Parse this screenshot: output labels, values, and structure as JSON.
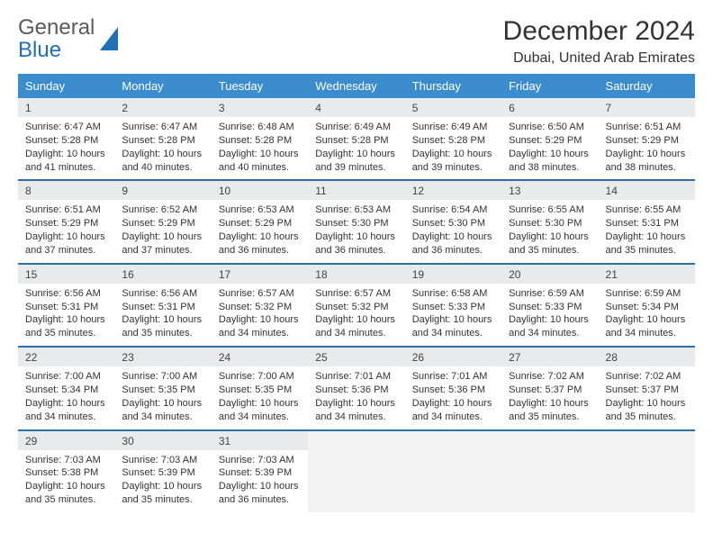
{
  "logo": {
    "line1": "General",
    "line2": "Blue"
  },
  "header": {
    "month_title": "December 2024",
    "location": "Dubai, United Arab Emirates"
  },
  "colors": {
    "header_bg": "#3b8ccc",
    "row_divider": "#2f6fa8",
    "daynum_bg": "#e9eaeb",
    "logo_gray": "#5b5b5b",
    "logo_blue": "#1f70b8"
  },
  "weekdays": [
    "Sunday",
    "Monday",
    "Tuesday",
    "Wednesday",
    "Thursday",
    "Friday",
    "Saturday"
  ],
  "weeks": [
    [
      {
        "n": "1",
        "sunrise": "6:47 AM",
        "sunset": "5:28 PM",
        "daylight": "10 hours and 41 minutes."
      },
      {
        "n": "2",
        "sunrise": "6:47 AM",
        "sunset": "5:28 PM",
        "daylight": "10 hours and 40 minutes."
      },
      {
        "n": "3",
        "sunrise": "6:48 AM",
        "sunset": "5:28 PM",
        "daylight": "10 hours and 40 minutes."
      },
      {
        "n": "4",
        "sunrise": "6:49 AM",
        "sunset": "5:28 PM",
        "daylight": "10 hours and 39 minutes."
      },
      {
        "n": "5",
        "sunrise": "6:49 AM",
        "sunset": "5:28 PM",
        "daylight": "10 hours and 39 minutes."
      },
      {
        "n": "6",
        "sunrise": "6:50 AM",
        "sunset": "5:29 PM",
        "daylight": "10 hours and 38 minutes."
      },
      {
        "n": "7",
        "sunrise": "6:51 AM",
        "sunset": "5:29 PM",
        "daylight": "10 hours and 38 minutes."
      }
    ],
    [
      {
        "n": "8",
        "sunrise": "6:51 AM",
        "sunset": "5:29 PM",
        "daylight": "10 hours and 37 minutes."
      },
      {
        "n": "9",
        "sunrise": "6:52 AM",
        "sunset": "5:29 PM",
        "daylight": "10 hours and 37 minutes."
      },
      {
        "n": "10",
        "sunrise": "6:53 AM",
        "sunset": "5:29 PM",
        "daylight": "10 hours and 36 minutes."
      },
      {
        "n": "11",
        "sunrise": "6:53 AM",
        "sunset": "5:30 PM",
        "daylight": "10 hours and 36 minutes."
      },
      {
        "n": "12",
        "sunrise": "6:54 AM",
        "sunset": "5:30 PM",
        "daylight": "10 hours and 36 minutes."
      },
      {
        "n": "13",
        "sunrise": "6:55 AM",
        "sunset": "5:30 PM",
        "daylight": "10 hours and 35 minutes."
      },
      {
        "n": "14",
        "sunrise": "6:55 AM",
        "sunset": "5:31 PM",
        "daylight": "10 hours and 35 minutes."
      }
    ],
    [
      {
        "n": "15",
        "sunrise": "6:56 AM",
        "sunset": "5:31 PM",
        "daylight": "10 hours and 35 minutes."
      },
      {
        "n": "16",
        "sunrise": "6:56 AM",
        "sunset": "5:31 PM",
        "daylight": "10 hours and 35 minutes."
      },
      {
        "n": "17",
        "sunrise": "6:57 AM",
        "sunset": "5:32 PM",
        "daylight": "10 hours and 34 minutes."
      },
      {
        "n": "18",
        "sunrise": "6:57 AM",
        "sunset": "5:32 PM",
        "daylight": "10 hours and 34 minutes."
      },
      {
        "n": "19",
        "sunrise": "6:58 AM",
        "sunset": "5:33 PM",
        "daylight": "10 hours and 34 minutes."
      },
      {
        "n": "20",
        "sunrise": "6:59 AM",
        "sunset": "5:33 PM",
        "daylight": "10 hours and 34 minutes."
      },
      {
        "n": "21",
        "sunrise": "6:59 AM",
        "sunset": "5:34 PM",
        "daylight": "10 hours and 34 minutes."
      }
    ],
    [
      {
        "n": "22",
        "sunrise": "7:00 AM",
        "sunset": "5:34 PM",
        "daylight": "10 hours and 34 minutes."
      },
      {
        "n": "23",
        "sunrise": "7:00 AM",
        "sunset": "5:35 PM",
        "daylight": "10 hours and 34 minutes."
      },
      {
        "n": "24",
        "sunrise": "7:00 AM",
        "sunset": "5:35 PM",
        "daylight": "10 hours and 34 minutes."
      },
      {
        "n": "25",
        "sunrise": "7:01 AM",
        "sunset": "5:36 PM",
        "daylight": "10 hours and 34 minutes."
      },
      {
        "n": "26",
        "sunrise": "7:01 AM",
        "sunset": "5:36 PM",
        "daylight": "10 hours and 34 minutes."
      },
      {
        "n": "27",
        "sunrise": "7:02 AM",
        "sunset": "5:37 PM",
        "daylight": "10 hours and 35 minutes."
      },
      {
        "n": "28",
        "sunrise": "7:02 AM",
        "sunset": "5:37 PM",
        "daylight": "10 hours and 35 minutes."
      }
    ],
    [
      {
        "n": "29",
        "sunrise": "7:03 AM",
        "sunset": "5:38 PM",
        "daylight": "10 hours and 35 minutes."
      },
      {
        "n": "30",
        "sunrise": "7:03 AM",
        "sunset": "5:39 PM",
        "daylight": "10 hours and 35 minutes."
      },
      {
        "n": "31",
        "sunrise": "7:03 AM",
        "sunset": "5:39 PM",
        "daylight": "10 hours and 36 minutes."
      },
      null,
      null,
      null,
      null
    ]
  ],
  "labels": {
    "sunrise": "Sunrise: ",
    "sunset": "Sunset: ",
    "daylight": "Daylight: "
  }
}
